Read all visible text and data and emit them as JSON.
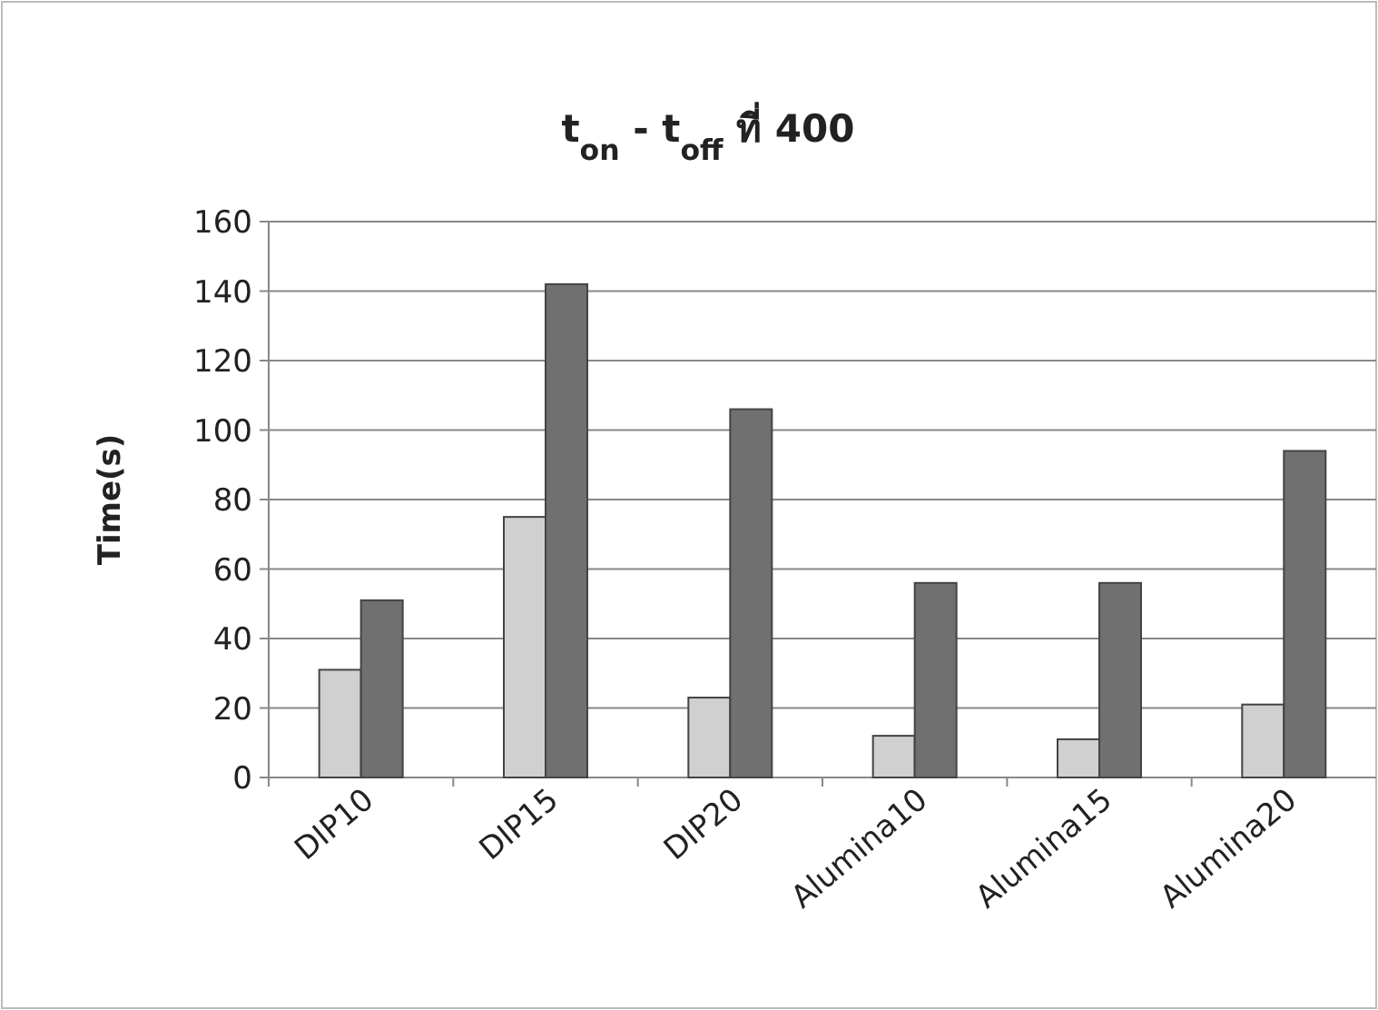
{
  "chart_data": {
    "type": "bar",
    "title": "t$_{on}$ -  t$_{off}$ ที่ 400",
    "ylabel": "Time(s)",
    "categories": [
      "DIP10",
      "DIP15",
      "DIP20",
      "Alumina10",
      "Alumina15",
      "Alumina20"
    ],
    "series": [
      {
        "color": "#d0d0d0",
        "values": [
          31,
          75,
          23,
          12,
          11,
          21
        ]
      },
      {
        "color": "#707070",
        "values": [
          51,
          142,
          106,
          56,
          56,
          94
        ]
      }
    ],
    "ylim": [
      0,
      160
    ],
    "yticks": [
      0,
      20,
      40,
      60,
      80,
      100,
      120,
      140,
      160
    ],
    "grid": "y"
  }
}
